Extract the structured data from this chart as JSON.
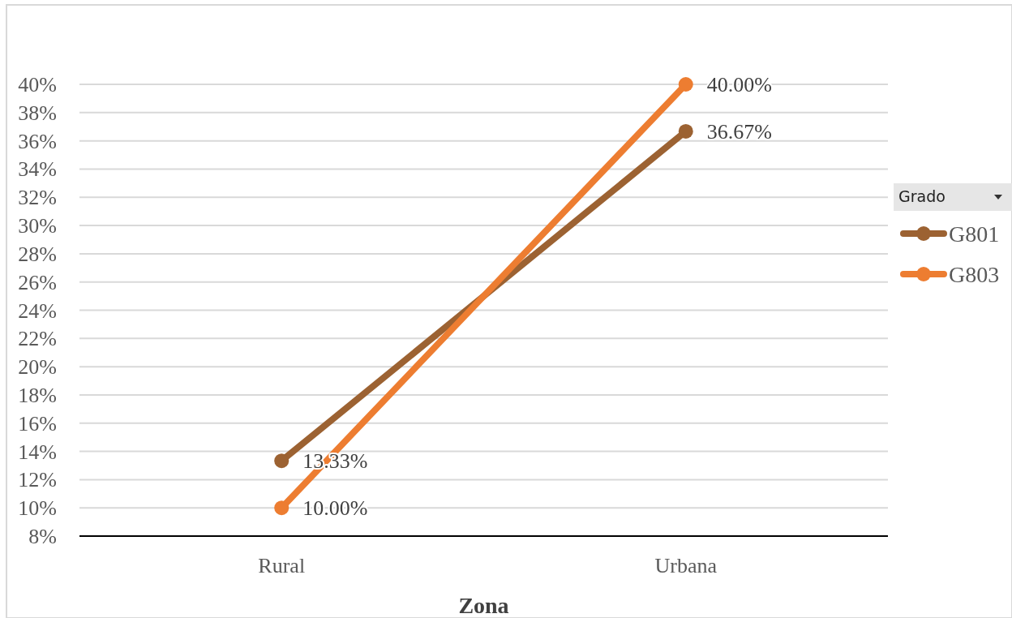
{
  "chart_data": {
    "type": "line",
    "xlabel": "Zona",
    "legend_title": "Grado",
    "legend": "right",
    "grid": "y",
    "marker": "circle",
    "line_style": "solid",
    "categories": [
      "Rural",
      "Urbana"
    ],
    "ylim": [
      8,
      40
    ],
    "yticks": [
      {
        "value": 8,
        "label": "8%"
      },
      {
        "value": 10,
        "label": "10%"
      },
      {
        "value": 12,
        "label": "12%"
      },
      {
        "value": 14,
        "label": "14%"
      },
      {
        "value": 16,
        "label": "16%"
      },
      {
        "value": 18,
        "label": "18%"
      },
      {
        "value": 20,
        "label": "20%"
      },
      {
        "value": 22,
        "label": "22%"
      },
      {
        "value": 24,
        "label": "24%"
      },
      {
        "value": 26,
        "label": "26%"
      },
      {
        "value": 28,
        "label": "28%"
      },
      {
        "value": 30,
        "label": "30%"
      },
      {
        "value": 32,
        "label": "32%"
      },
      {
        "value": 34,
        "label": "34%"
      },
      {
        "value": 36,
        "label": "36%"
      },
      {
        "value": 38,
        "label": "38%"
      },
      {
        "value": 40,
        "label": "40%"
      }
    ],
    "series": [
      {
        "name": "G801",
        "color": "#9c6232",
        "values": [
          13.33,
          36.67
        ],
        "value_labels": [
          "13.33%",
          "36.67%"
        ]
      },
      {
        "name": "G803",
        "color": "#ed7d31",
        "values": [
          10,
          40
        ],
        "value_labels": [
          "10.00%",
          "40.00%"
        ]
      }
    ]
  }
}
